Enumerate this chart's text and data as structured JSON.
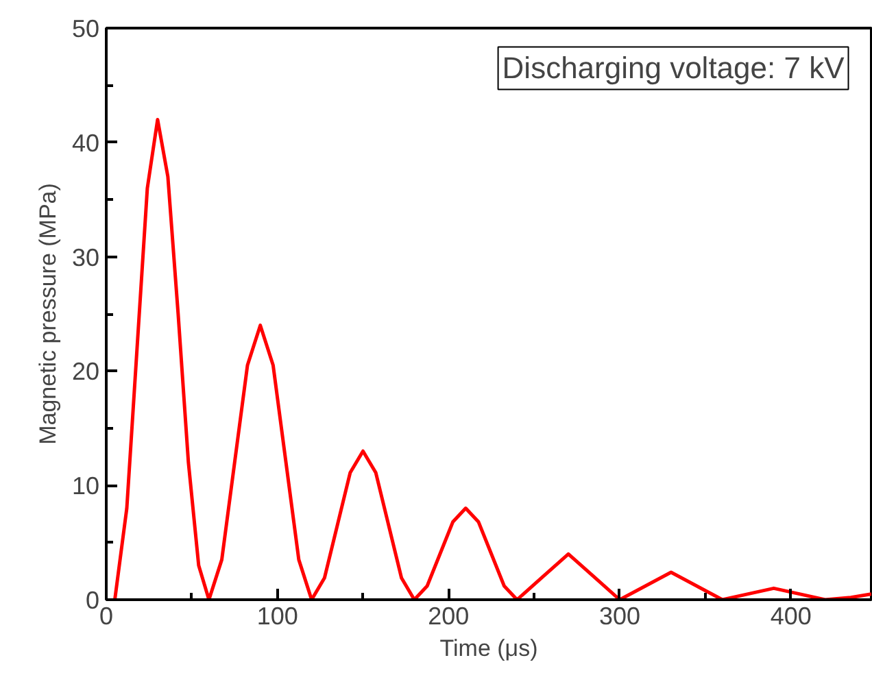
{
  "chart_data": {
    "type": "line",
    "xlabel": "Time (μs)",
    "ylabel": "Magnetic pressure (MPa)",
    "annotations": [
      "Discharging voltage: 7 kV"
    ],
    "xlim": [
      0,
      447
    ],
    "ylim": [
      0,
      50
    ],
    "xticks": [
      0,
      {
        "value": 50,
        "label": null
      },
      100,
      {
        "value": 150,
        "label": null
      },
      200,
      {
        "value": 250,
        "label": null
      },
      300,
      {
        "value": 350,
        "label": null
      },
      400
    ],
    "yticks": [
      0,
      {
        "value": 5,
        "label": null
      },
      10,
      {
        "value": 15,
        "label": null
      },
      20,
      {
        "value": 25,
        "label": null
      },
      30,
      {
        "value": 35,
        "label": null
      },
      40,
      {
        "value": 45,
        "label": null
      },
      50
    ],
    "grid": false,
    "line_style": "solid",
    "series": [
      {
        "color": "#ff0000",
        "x": [
          5,
          12,
          18,
          24,
          30,
          36,
          42,
          48,
          54,
          60,
          67.5,
          75,
          82.5,
          90,
          97.5,
          105,
          112.5,
          120,
          127.5,
          135,
          142.5,
          150,
          157.5,
          165,
          172.5,
          180,
          187.5,
          195,
          202.5,
          210,
          217.5,
          225,
          232.5,
          240,
          255,
          270,
          285,
          300,
          315,
          330,
          345,
          360,
          375,
          390,
          405,
          420,
          435,
          447
        ],
        "values": [
          0,
          8,
          22,
          36,
          42,
          37,
          25,
          12,
          3,
          0,
          3.5,
          12,
          20.5,
          24,
          20.5,
          12,
          3.5,
          0,
          1.9,
          6.5,
          11.1,
          13,
          11.1,
          6.5,
          1.9,
          0,
          1.2,
          4,
          6.8,
          8,
          6.8,
          4,
          1.2,
          0,
          2,
          4,
          2,
          0,
          1.2,
          2.4,
          1.2,
          0,
          0.5,
          1,
          0.5,
          0,
          0.2,
          0.5
        ]
      }
    ]
  }
}
